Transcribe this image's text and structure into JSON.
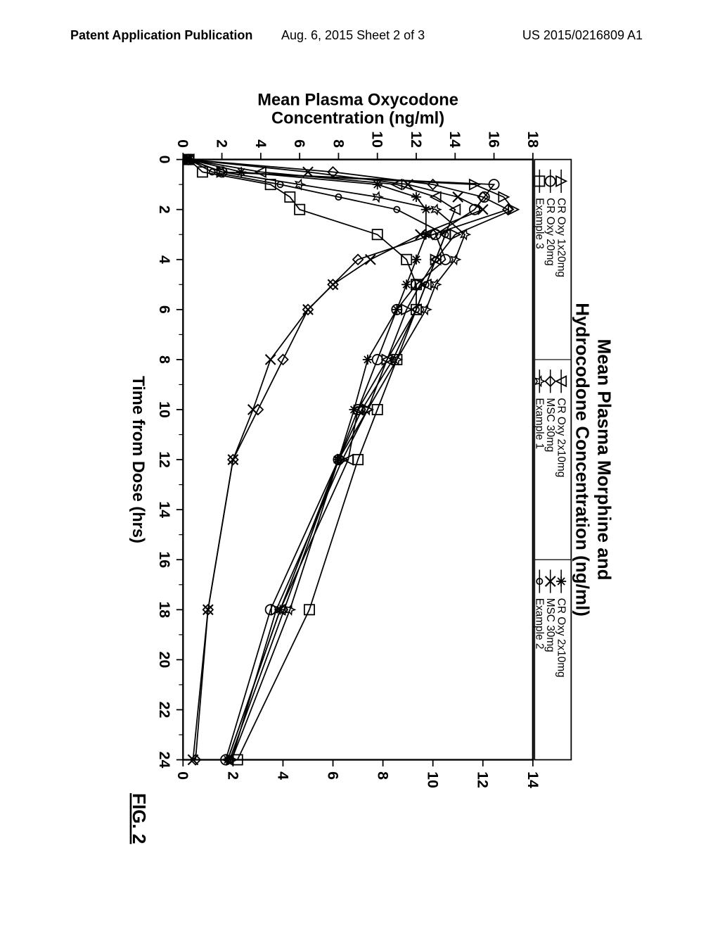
{
  "header": {
    "left": "Patent Application Publication",
    "center": "Aug. 6, 2015  Sheet 2 of 3",
    "right": "US 2015/0216809 A1"
  },
  "figure_label": "FIG. 2",
  "chart": {
    "type": "line",
    "title_line1": "Mean Plasma Morphine and",
    "title_line2": "Hydrocodone Concentration (ng/ml)",
    "x_axis_label": "Time from Dose (hrs)",
    "left_y_axis_label": "Mean Plasma Oxycodone Concentration (ng/ml)",
    "x_ticks": [
      0,
      2,
      4,
      6,
      8,
      10,
      12,
      14,
      16,
      18,
      20,
      22,
      24
    ],
    "left_y_ticks": [
      0,
      2,
      4,
      6,
      8,
      10,
      12,
      14,
      16,
      18
    ],
    "right_y_ticks": [
      0,
      2,
      4,
      6,
      8,
      10,
      12,
      14
    ],
    "xlim": [
      0,
      24
    ],
    "left_ylim": [
      0,
      18
    ],
    "right_ylim": [
      0,
      14
    ],
    "background_color": "#ffffff",
    "line_color": "#000000",
    "line_width": 1.5,
    "axis_color": "#000000",
    "tick_fontsize": 18,
    "label_fontsize": 20,
    "title_fontsize": 22,
    "legend": {
      "items": [
        {
          "id": "croxy1x20",
          "label": "CR Oxy 1x20mg",
          "marker": "triangle-open"
        },
        {
          "id": "croxy20",
          "label": "CR Oxy 20mg",
          "marker": "circle-open"
        },
        {
          "id": "example3",
          "label": "Example 3",
          "marker": "square-open"
        },
        {
          "id": "croxy2x10a",
          "label": "CR Oxy 2x10mg",
          "marker": "triangle-down-open"
        },
        {
          "id": "msc30a",
          "label": "MSC 30mg",
          "marker": "diamond-open"
        },
        {
          "id": "example1",
          "label": "Example 1",
          "marker": "star-open"
        },
        {
          "id": "croxy2x10b",
          "label": "CR Oxy 2x10mg",
          "marker": "asterisk"
        },
        {
          "id": "msc30b",
          "label": "MSC 30mg",
          "marker": "x"
        },
        {
          "id": "example2",
          "label": "Example 2",
          "marker": "circle-small"
        }
      ]
    },
    "series": [
      {
        "id": "croxy1x20",
        "marker": "triangle-open",
        "axis": "left",
        "points": [
          [
            0,
            0.3
          ],
          [
            0.5,
            2
          ],
          [
            1,
            15
          ],
          [
            1.5,
            16.5
          ],
          [
            2,
            17
          ],
          [
            3,
            14
          ],
          [
            4,
            13
          ],
          [
            5,
            12.2
          ],
          [
            6,
            11.5
          ],
          [
            8,
            10.5
          ],
          [
            10,
            9.5
          ],
          [
            12,
            8.2
          ],
          [
            18,
            4.8
          ],
          [
            24,
            2.5
          ]
        ]
      },
      {
        "id": "croxy20",
        "marker": "circle-open",
        "axis": "left",
        "points": [
          [
            0,
            0.3
          ],
          [
            0.5,
            2
          ],
          [
            1,
            16
          ],
          [
            1.5,
            15.5
          ],
          [
            2,
            15
          ],
          [
            3,
            13
          ],
          [
            4,
            13.5
          ],
          [
            5,
            12
          ],
          [
            6,
            11
          ],
          [
            8,
            10
          ],
          [
            10,
            9
          ],
          [
            12,
            8
          ],
          [
            18,
            4.5
          ],
          [
            24,
            2.2
          ]
        ]
      },
      {
        "id": "example3",
        "marker": "square-open",
        "axis": "left",
        "points": [
          [
            0,
            0.3
          ],
          [
            0.5,
            1
          ],
          [
            1,
            4.5
          ],
          [
            1.5,
            5.5
          ],
          [
            2,
            6
          ],
          [
            3,
            10
          ],
          [
            4,
            11.5
          ],
          [
            5,
            12
          ],
          [
            6,
            12
          ],
          [
            8,
            11
          ],
          [
            10,
            10
          ],
          [
            12,
            9
          ],
          [
            18,
            6.5
          ],
          [
            24,
            2.8
          ]
        ]
      },
      {
        "id": "croxy2x10a",
        "marker": "triangle-down-open",
        "axis": "left",
        "points": [
          [
            0,
            0.3
          ],
          [
            0.5,
            4
          ],
          [
            1,
            11
          ],
          [
            1.5,
            13
          ],
          [
            2,
            14
          ],
          [
            3,
            13.5
          ],
          [
            4,
            13
          ],
          [
            5,
            12.5
          ],
          [
            6,
            12
          ],
          [
            8,
            10.5
          ],
          [
            10,
            9
          ],
          [
            12,
            8.5
          ],
          [
            18,
            5
          ],
          [
            24,
            2.3
          ]
        ]
      },
      {
        "id": "msc30a",
        "marker": "diamond-open",
        "axis": "right",
        "points": [
          [
            0,
            0.2
          ],
          [
            0.5,
            6
          ],
          [
            1,
            10
          ],
          [
            1.5,
            12
          ],
          [
            2,
            13
          ],
          [
            3,
            10
          ],
          [
            4,
            7
          ],
          [
            5,
            6
          ],
          [
            6,
            5
          ],
          [
            8,
            4
          ],
          [
            10,
            3
          ],
          [
            12,
            2
          ],
          [
            18,
            1
          ],
          [
            24,
            0.5
          ]
        ]
      },
      {
        "id": "example1",
        "marker": "star-open",
        "axis": "left",
        "points": [
          [
            0,
            0.3
          ],
          [
            0.5,
            2
          ],
          [
            1,
            6
          ],
          [
            1.5,
            10
          ],
          [
            2,
            13
          ],
          [
            3,
            14.5
          ],
          [
            4,
            14
          ],
          [
            5,
            13
          ],
          [
            6,
            12.5
          ],
          [
            8,
            11
          ],
          [
            10,
            9.5
          ],
          [
            12,
            8
          ],
          [
            18,
            5.5
          ],
          [
            24,
            2.5
          ]
        ]
      },
      {
        "id": "croxy2x10b",
        "marker": "asterisk",
        "axis": "left",
        "points": [
          [
            0,
            0.3
          ],
          [
            0.5,
            3
          ],
          [
            1,
            10
          ],
          [
            1.5,
            12
          ],
          [
            2,
            12.5
          ],
          [
            3,
            12.5
          ],
          [
            4,
            12
          ],
          [
            5,
            11.5
          ],
          [
            6,
            11
          ],
          [
            8,
            9.5
          ],
          [
            10,
            8.8
          ],
          [
            12,
            8
          ],
          [
            18,
            5
          ],
          [
            24,
            2.3
          ]
        ]
      },
      {
        "id": "msc30b",
        "marker": "x",
        "axis": "right",
        "points": [
          [
            0,
            0.2
          ],
          [
            0.5,
            5
          ],
          [
            1,
            9
          ],
          [
            1.5,
            11
          ],
          [
            2,
            12
          ],
          [
            3,
            9.5
          ],
          [
            4,
            7.5
          ],
          [
            5,
            6
          ],
          [
            6,
            5
          ],
          [
            8,
            3.5
          ],
          [
            10,
            2.8
          ],
          [
            12,
            2
          ],
          [
            18,
            1
          ],
          [
            24,
            0.4
          ]
        ]
      },
      {
        "id": "example2",
        "marker": "circle-small",
        "axis": "left",
        "points": [
          [
            0,
            0.3
          ],
          [
            0.5,
            1.5
          ],
          [
            1,
            5
          ],
          [
            1.5,
            8
          ],
          [
            2,
            11
          ],
          [
            3,
            13.5
          ],
          [
            4,
            13
          ],
          [
            5,
            12.5
          ],
          [
            6,
            12
          ],
          [
            8,
            10.8
          ],
          [
            10,
            9.2
          ],
          [
            12,
            8
          ],
          [
            18,
            5.2
          ],
          [
            24,
            2.4
          ]
        ]
      }
    ]
  }
}
